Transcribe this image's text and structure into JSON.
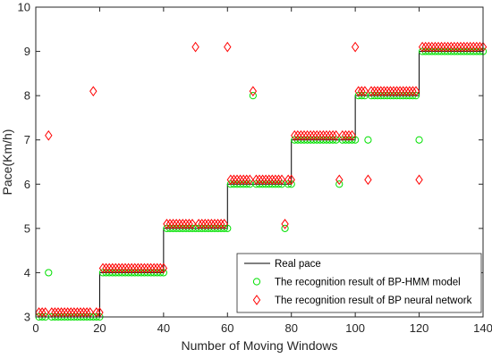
{
  "chart_data": {
    "type": "line",
    "xlabel": "Number of Moving Windows",
    "ylabel": "Pace(Km/h)",
    "xlim": [
      0,
      140
    ],
    "ylim": [
      3,
      10
    ],
    "xticks": [
      0,
      20,
      40,
      60,
      80,
      100,
      120,
      140
    ],
    "yticks": [
      3,
      4,
      5,
      6,
      7,
      8,
      9,
      10
    ],
    "grid": false,
    "legend_position": "bottom-right",
    "series": [
      {
        "name": "Real pace",
        "style": "line",
        "color": "#000000",
        "x": [
          1,
          20,
          20,
          40,
          40,
          60,
          60,
          80,
          80,
          100,
          100,
          120,
          120,
          140
        ],
        "y": [
          3,
          3,
          4,
          4,
          5,
          5,
          6,
          6,
          7,
          7,
          8,
          8,
          9,
          9
        ]
      },
      {
        "name": "The recognition result of BP-HMM model",
        "style": "circle",
        "color": "#00e000",
        "x": [
          1,
          2,
          3,
          4,
          5,
          6,
          7,
          8,
          9,
          10,
          11,
          12,
          13,
          14,
          15,
          16,
          17,
          18,
          19,
          20,
          21,
          22,
          23,
          24,
          25,
          26,
          27,
          28,
          29,
          30,
          31,
          32,
          33,
          34,
          35,
          36,
          37,
          38,
          39,
          40,
          41,
          42,
          43,
          44,
          45,
          46,
          47,
          48,
          49,
          50,
          51,
          52,
          53,
          54,
          55,
          56,
          57,
          58,
          59,
          60,
          61,
          62,
          63,
          64,
          65,
          66,
          67,
          68,
          69,
          70,
          71,
          72,
          73,
          74,
          75,
          76,
          77,
          78,
          79,
          80,
          81,
          82,
          83,
          84,
          85,
          86,
          87,
          88,
          89,
          90,
          91,
          92,
          93,
          94,
          95,
          96,
          97,
          98,
          99,
          100,
          101,
          102,
          103,
          104,
          105,
          106,
          107,
          108,
          109,
          110,
          111,
          112,
          113,
          114,
          115,
          116,
          117,
          118,
          119,
          120,
          121,
          122,
          123,
          124,
          125,
          126,
          127,
          128,
          129,
          130,
          131,
          132,
          133,
          134,
          135,
          136,
          137,
          138,
          139,
          140
        ],
        "y": [
          3,
          3,
          3,
          4,
          3,
          3,
          3,
          3,
          3,
          3,
          3,
          3,
          3,
          3,
          3,
          3,
          3,
          3,
          3,
          3,
          4,
          4,
          4,
          4,
          4,
          4,
          4,
          4,
          4,
          4,
          4,
          4,
          4,
          4,
          4,
          4,
          4,
          4,
          4,
          4,
          5,
          5,
          5,
          5,
          5,
          5,
          5,
          5,
          5,
          5,
          5,
          5,
          5,
          5,
          5,
          5,
          5,
          5,
          5,
          5,
          6,
          6,
          6,
          6,
          6,
          6,
          6,
          8,
          6,
          6,
          6,
          6,
          6,
          6,
          6,
          6,
          6,
          5,
          6,
          6,
          7,
          7,
          7,
          7,
          7,
          7,
          7,
          7,
          7,
          7,
          7,
          7,
          7,
          7,
          6,
          7,
          7,
          7,
          7,
          7,
          8,
          8,
          8,
          7,
          8,
          8,
          8,
          8,
          8,
          8,
          8,
          8,
          8,
          8,
          8,
          8,
          8,
          8,
          8,
          7,
          9,
          9,
          9,
          9,
          9,
          9,
          9,
          9,
          9,
          9,
          9,
          9,
          9,
          9,
          9,
          9,
          9,
          9,
          9,
          9
        ]
      },
      {
        "name": "The recognition result of BP neural network",
        "style": "diamond",
        "color": "#ff0000",
        "x": [
          1,
          2,
          3,
          4,
          5,
          6,
          7,
          8,
          9,
          10,
          11,
          12,
          13,
          14,
          15,
          16,
          17,
          18,
          19,
          20,
          21,
          22,
          23,
          24,
          25,
          26,
          27,
          28,
          29,
          30,
          31,
          32,
          33,
          34,
          35,
          36,
          37,
          38,
          39,
          40,
          41,
          42,
          43,
          44,
          45,
          46,
          47,
          48,
          49,
          50,
          51,
          52,
          53,
          54,
          55,
          56,
          57,
          58,
          59,
          60,
          61,
          62,
          63,
          64,
          65,
          66,
          67,
          68,
          69,
          70,
          71,
          72,
          73,
          74,
          75,
          76,
          77,
          78,
          79,
          80,
          81,
          82,
          83,
          84,
          85,
          86,
          87,
          88,
          89,
          90,
          91,
          92,
          93,
          94,
          95,
          96,
          97,
          98,
          99,
          100,
          101,
          102,
          103,
          104,
          105,
          106,
          107,
          108,
          109,
          110,
          111,
          112,
          113,
          114,
          115,
          116,
          117,
          118,
          119,
          120,
          121,
          122,
          123,
          124,
          125,
          126,
          127,
          128,
          129,
          130,
          131,
          132,
          133,
          134,
          135,
          136,
          137,
          138,
          139,
          140
        ],
        "y": [
          3.1,
          3.1,
          3.1,
          7.1,
          3.1,
          3.1,
          3.1,
          3.1,
          3.1,
          3.1,
          3.1,
          3.1,
          3.1,
          3.1,
          3.1,
          3.1,
          3.1,
          8.1,
          3.1,
          3.1,
          4.1,
          4.1,
          4.1,
          4.1,
          4.1,
          4.1,
          4.1,
          4.1,
          4.1,
          4.1,
          4.1,
          4.1,
          4.1,
          4.1,
          4.1,
          4.1,
          4.1,
          4.1,
          4.1,
          4.1,
          5.1,
          5.1,
          5.1,
          5.1,
          5.1,
          5.1,
          5.1,
          5.1,
          5.1,
          9.1,
          5.1,
          5.1,
          5.1,
          5.1,
          5.1,
          5.1,
          5.1,
          5.1,
          5.1,
          9.1,
          6.1,
          6.1,
          6.1,
          6.1,
          6.1,
          6.1,
          6.1,
          8.1,
          6.1,
          6.1,
          6.1,
          6.1,
          6.1,
          6.1,
          6.1,
          6.1,
          6.1,
          5.1,
          6.1,
          6.1,
          7.1,
          7.1,
          7.1,
          7.1,
          7.1,
          7.1,
          7.1,
          7.1,
          7.1,
          7.1,
          7.1,
          7.1,
          7.1,
          7.1,
          6.1,
          7.1,
          7.1,
          7.1,
          7.1,
          9.1,
          8.1,
          8.1,
          8.1,
          6.1,
          8.1,
          8.1,
          8.1,
          8.1,
          8.1,
          8.1,
          8.1,
          8.1,
          8.1,
          8.1,
          8.1,
          8.1,
          8.1,
          8.1,
          8.1,
          6.1,
          9.1,
          9.1,
          9.1,
          9.1,
          9.1,
          9.1,
          9.1,
          9.1,
          9.1,
          9.1,
          9.1,
          9.1,
          9.1,
          9.1,
          9.1,
          9.1,
          9.1,
          9.1,
          9.1,
          9.1
        ]
      }
    ]
  }
}
